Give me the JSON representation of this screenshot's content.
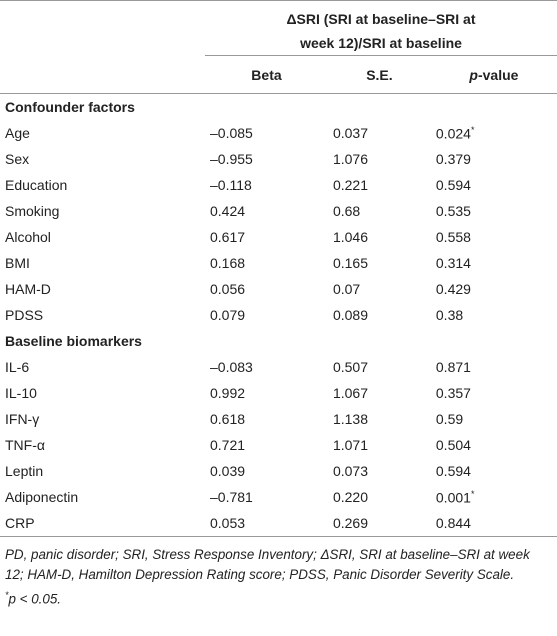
{
  "table": {
    "header": {
      "title": [
        "ΔSRI (SRI at baseline–SRI at",
        "week 12)/SRI at baseline"
      ],
      "columns": [
        "Beta",
        "S.E.",
        {
          "em": "p",
          "text": "-value"
        }
      ]
    },
    "sections": [
      {
        "title": "Confounder factors",
        "rows": [
          [
            "Age",
            "–0.085",
            "0.037",
            {
              "value": "0.024",
              "note": "*"
            }
          ],
          [
            "Sex",
            "–0.955",
            "1.076",
            "0.379"
          ],
          [
            "Education",
            "–0.118",
            "0.221",
            "0.594"
          ],
          [
            "Smoking",
            "0.424",
            "0.68",
            "0.535"
          ],
          [
            "Alcohol",
            "0.617",
            "1.046",
            "0.558"
          ],
          [
            "BMI",
            "0.168",
            "0.165",
            "0.314"
          ],
          [
            "HAM-D",
            "0.056",
            "0.07",
            "0.429"
          ],
          [
            "PDSS",
            "0.079",
            "0.089",
            "0.38"
          ]
        ]
      },
      {
        "title": "Baseline biomarkers",
        "rows": [
          [
            "IL-6",
            "–0.083",
            "0.507",
            "0.871"
          ],
          [
            "IL-10",
            "0.992",
            "1.067",
            "0.357"
          ],
          [
            "IFN-γ",
            "0.618",
            "1.138",
            "0.59"
          ],
          [
            "TNF-α",
            "0.721",
            "1.071",
            "0.504"
          ],
          [
            "Leptin",
            "0.039",
            "0.073",
            "0.594"
          ],
          [
            "Adiponectin",
            "–0.781",
            "0.220",
            {
              "value": "0.001",
              "note": "*"
            }
          ],
          [
            "CRP",
            "0.053",
            "0.269",
            "0.844"
          ]
        ]
      }
    ],
    "footnote": {
      "text": "PD, panic disorder; SRI, Stress Response Inventory; ΔSRI, SRI at baseline–SRI at week 12; HAM-D, Hamilton Depression Rating score; PDSS, Panic Disorder Severity Scale.",
      "mark": "*",
      "em": "p < 0.05."
    }
  }
}
